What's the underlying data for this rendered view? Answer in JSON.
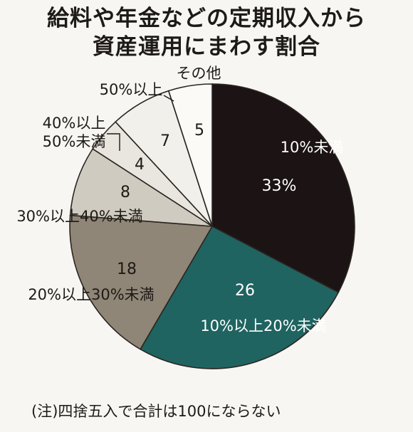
{
  "title_line1": "給料や年金などの定期収入から",
  "title_line2": "資産運用にまわす割合",
  "note": "(注)四捨五入で合計は100にならない",
  "chart_data": {
    "type": "pie",
    "title": "給料や年金などの定期収入から資産運用にまわす割合",
    "slices": [
      {
        "label": "10%未満",
        "value": 33,
        "value_label": "33%",
        "color": "#1c1314"
      },
      {
        "label": "10%以上20%未満",
        "value": 26,
        "value_label": "26",
        "color": "#1f6461"
      },
      {
        "label": "20%以上30%未満",
        "value": 18,
        "value_label": "18",
        "color": "#8f8677"
      },
      {
        "label": "30%以上40%未満",
        "value": 8,
        "value_label": "8",
        "color": "#cfcbc0"
      },
      {
        "label": "40%以上50%未満",
        "value": 4,
        "value_label": "4",
        "color": "#e8e6de"
      },
      {
        "label": "50%以上",
        "value": 7,
        "value_label": "7",
        "color": "#f1f0ea"
      },
      {
        "label": "その他",
        "value": 5,
        "value_label": "5",
        "color": "#fbfaf7"
      }
    ],
    "start": "12 o'clock",
    "direction": "clockwise"
  }
}
